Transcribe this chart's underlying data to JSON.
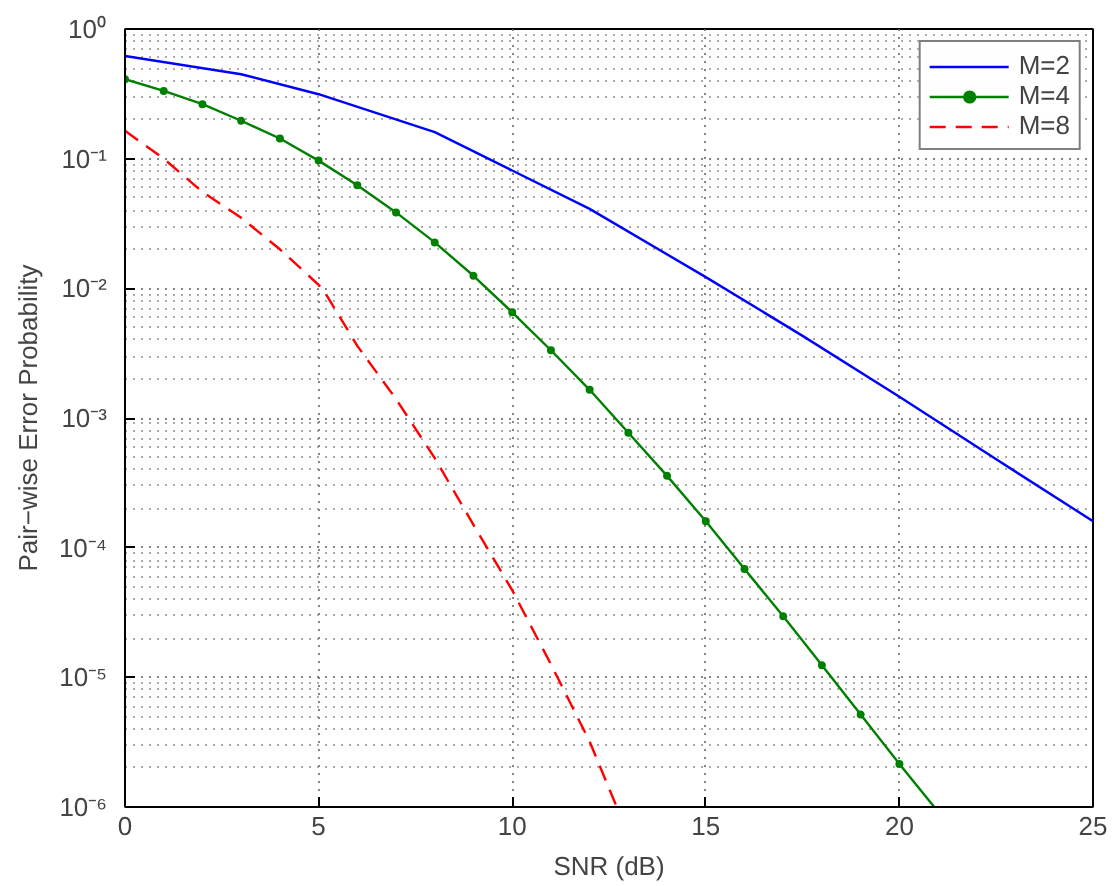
{
  "chart_data": {
    "type": "line",
    "xlabel": "SNR (dB)",
    "ylabel": "Pair−wise Error Probability",
    "log": "y",
    "grid": true,
    "legend": "top right",
    "xlim": [
      0,
      25
    ],
    "xticks": [
      0,
      5,
      10,
      15,
      20,
      25
    ],
    "ylim": [
      1e-06,
      1
    ],
    "yticks": [
      {
        "value": 1e-06,
        "label": "10⁻⁶"
      },
      {
        "value": 1e-05,
        "label": "10⁻⁵"
      },
      {
        "value": 0.0001,
        "label": "10⁻⁴"
      },
      {
        "value": 0.001,
        "label": "10⁻³"
      },
      {
        "value": 0.01,
        "label": "10⁻²"
      },
      {
        "value": 0.1,
        "label": "10⁻¹"
      },
      {
        "value": 1,
        "label": "10⁰"
      }
    ],
    "series": [
      {
        "name": "M=2",
        "color": "#0000ff",
        "marker": "none",
        "line_style": "solid",
        "x": [
          0,
          3,
          5,
          8,
          10,
          12,
          15,
          17.5,
          20,
          22.5,
          25
        ],
        "values": [
          0.62,
          0.448,
          0.314,
          0.16,
          0.081,
          0.041,
          0.0122,
          0.0043,
          0.00146,
          0.00048,
          0.00016
        ]
      },
      {
        "name": "M=4",
        "color": "#008000",
        "marker": "circle",
        "line_style": "solid",
        "x": [
          0,
          1,
          2,
          3,
          4,
          5,
          6,
          7,
          8,
          9,
          10,
          11,
          12,
          13,
          14,
          15,
          16,
          17,
          18,
          19,
          20,
          20.9
        ],
        "values": [
          0.41,
          0.333,
          0.263,
          0.196,
          0.143,
          0.0966,
          0.0623,
          0.0385,
          0.0226,
          0.0125,
          0.00653,
          0.00333,
          0.00165,
          0.00077,
          0.000358,
          0.00016,
          6.85e-05,
          2.96e-05,
          1.24e-05,
          5.16e-06,
          2.15e-06,
          1e-06
        ]
      },
      {
        "name": "M=8",
        "color": "#ff0000",
        "marker": "none",
        "line_style": "dashed",
        "x": [
          0,
          1,
          2,
          3,
          4,
          5.1,
          6,
          7,
          8,
          9,
          10,
          11,
          12,
          12.7
        ],
        "values": [
          0.164,
          0.1,
          0.0554,
          0.035,
          0.02,
          0.01,
          0.0036,
          0.0014,
          0.00049,
          0.00015,
          4.7e-05,
          1.26e-05,
          3.2e-06,
          1e-06
        ]
      }
    ]
  }
}
